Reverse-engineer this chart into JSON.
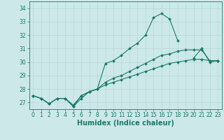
{
  "title": "",
  "xlabel": "Humidex (Indice chaleur)",
  "ylabel": "",
  "bg_color": "#cce8e8",
  "line_color": "#1a7a6a",
  "ylim": [
    26.5,
    34.5
  ],
  "xlim": [
    -0.5,
    23.5
  ],
  "yticks": [
    27,
    28,
    29,
    30,
    31,
    32,
    33,
    34
  ],
  "xticks": [
    0,
    1,
    2,
    3,
    4,
    5,
    6,
    7,
    8,
    9,
    10,
    11,
    12,
    13,
    14,
    15,
    16,
    17,
    18,
    19,
    20,
    21,
    22,
    23
  ],
  "lines": [
    {
      "x": [
        0,
        1,
        2,
        3,
        4,
        5,
        6,
        7,
        8,
        9,
        10,
        11,
        12,
        13,
        14,
        15,
        16,
        17,
        18,
        19,
        20,
        21,
        22,
        23
      ],
      "y": [
        27.5,
        27.3,
        26.9,
        27.3,
        27.3,
        26.7,
        27.3,
        27.8,
        28.0,
        29.9,
        30.1,
        30.5,
        31.0,
        31.4,
        32.0,
        33.3,
        33.6,
        33.2,
        31.6,
        null,
        30.3,
        31.0,
        30.0,
        30.1
      ]
    },
    {
      "x": [
        0,
        1,
        2,
        3,
        4,
        5,
        6,
        7,
        8,
        9,
        10,
        11,
        12,
        13,
        14,
        15,
        16,
        17,
        18,
        19,
        20,
        21,
        22,
        23
      ],
      "y": [
        27.5,
        27.3,
        26.9,
        27.3,
        27.3,
        26.7,
        27.5,
        27.8,
        28.0,
        28.5,
        28.8,
        29.0,
        29.3,
        29.6,
        29.9,
        30.2,
        30.5,
        30.6,
        30.8,
        30.9,
        30.9,
        30.9,
        30.1,
        30.1
      ]
    },
    {
      "x": [
        0,
        1,
        2,
        3,
        4,
        5,
        6,
        7,
        8,
        9,
        10,
        11,
        12,
        13,
        14,
        15,
        16,
        17,
        18,
        19,
        20,
        21,
        22,
        23
      ],
      "y": [
        27.5,
        27.3,
        26.9,
        27.3,
        27.3,
        26.8,
        27.5,
        27.8,
        28.0,
        28.3,
        28.5,
        28.7,
        28.9,
        29.1,
        29.3,
        29.5,
        29.7,
        29.9,
        30.0,
        30.1,
        30.2,
        30.2,
        30.1,
        30.1
      ]
    }
  ],
  "grid_color": "#b8d8d8",
  "tick_fontsize": 5.5,
  "label_fontsize": 7,
  "marker": "D",
  "markersize": 2.0,
  "linewidth": 0.8
}
